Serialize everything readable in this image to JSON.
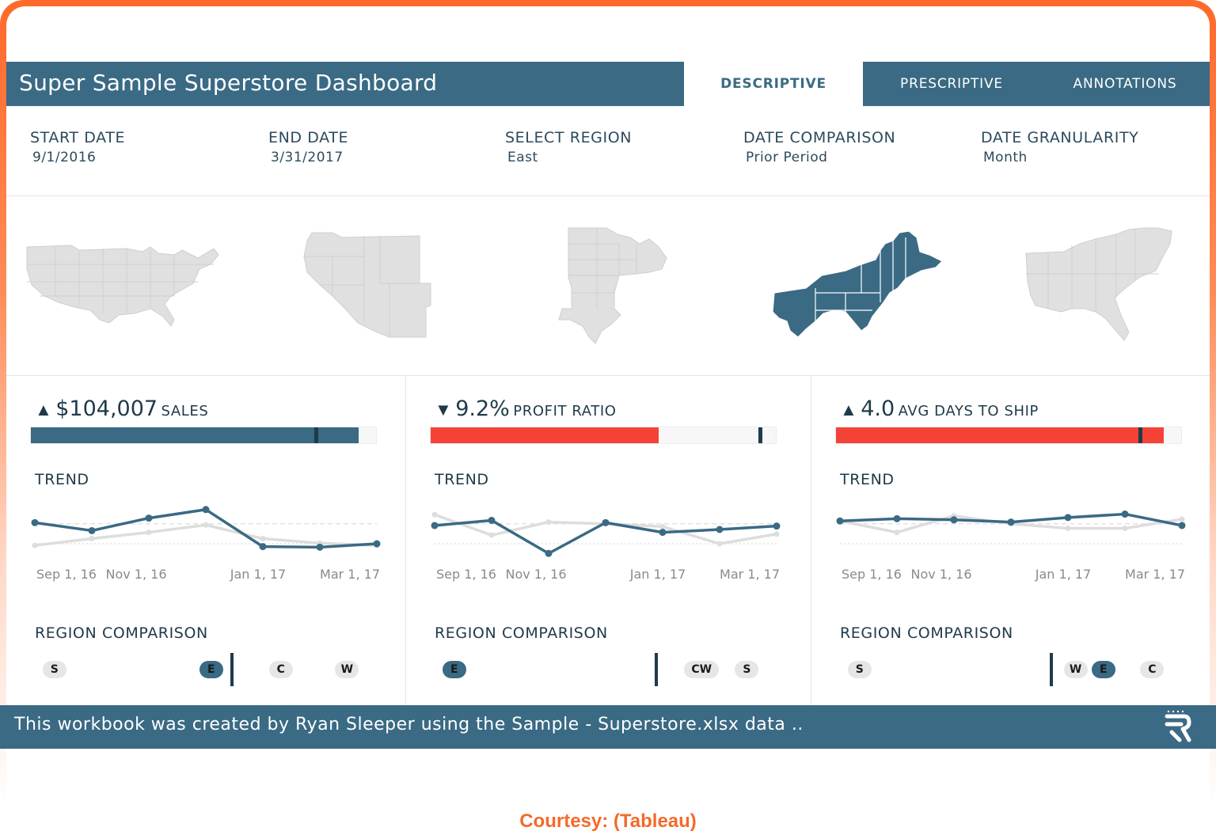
{
  "header": {
    "title": "Super Sample Superstore Dashboard"
  },
  "tabs": [
    {
      "label": "DESCRIPTIVE",
      "active": true
    },
    {
      "label": "PRESCRIPTIVE",
      "active": false
    },
    {
      "label": "ANNOTATIONS",
      "active": false
    }
  ],
  "filters": [
    {
      "label": "START DATE",
      "value": "9/1/2016"
    },
    {
      "label": "END DATE",
      "value": "3/31/2017"
    },
    {
      "label": "SELECT REGION",
      "value": "East"
    },
    {
      "label": "DATE COMPARISON",
      "value": "Prior Period"
    },
    {
      "label": "DATE GRANULARITY",
      "value": "Month"
    }
  ],
  "maps": {
    "regions": [
      "All",
      "West",
      "Central",
      "East",
      "South"
    ],
    "selected": "East",
    "colors": {
      "selected": "#3a6a84",
      "unselected": "#e0e0e0"
    }
  },
  "kpis": [
    {
      "direction": "up",
      "arrow": "▲",
      "value": "$104,007",
      "label": "SALES",
      "bar": {
        "fill": 0.95,
        "ref": 0.82,
        "color": "#3a6a84"
      },
      "trend_title": "TREND",
      "compare_title": "REGION COMPARISON",
      "chips": [
        {
          "label": "S",
          "pos": 0.07,
          "selected": false
        },
        {
          "label": "E",
          "pos": 0.52,
          "selected": true
        },
        {
          "label": "C",
          "pos": 0.72,
          "selected": false
        },
        {
          "label": "W",
          "pos": 0.91,
          "selected": false
        }
      ],
      "ref_pos": 0.575
    },
    {
      "direction": "down",
      "arrow": "▼",
      "value": "9.2%",
      "label": "PROFIT RATIO",
      "bar": {
        "fill": 0.66,
        "ref": 0.95,
        "color": "#f44336"
      },
      "trend_title": "TREND",
      "compare_title": "REGION COMPARISON",
      "chips": [
        {
          "label": "E",
          "pos": 0.07,
          "selected": true
        },
        {
          "label": "CW",
          "pos": 0.78,
          "selected": false,
          "wide": true
        },
        {
          "label": "S",
          "pos": 0.91,
          "selected": false
        }
      ],
      "ref_pos": 0.645
    },
    {
      "direction": "up",
      "arrow": "▲",
      "value": "4.0",
      "label": "AVG DAYS TO SHIP",
      "bar": {
        "fill": 0.95,
        "ref": 0.875,
        "color": "#f44336"
      },
      "trend_title": "TREND",
      "compare_title": "REGION COMPARISON",
      "chips": [
        {
          "label": "S",
          "pos": 0.07,
          "selected": false
        },
        {
          "label": "W",
          "pos": 0.69,
          "selected": false
        },
        {
          "label": "E",
          "pos": 0.77,
          "selected": true
        },
        {
          "label": "C",
          "pos": 0.91,
          "selected": false
        }
      ],
      "ref_pos": 0.615
    }
  ],
  "chart_data": [
    {
      "type": "line",
      "title": "TREND",
      "x": [
        "Sep 1, 16",
        "Oct 1, 16",
        "Nov 1, 16",
        "Dec 1, 16",
        "Jan 1, 17",
        "Feb 1, 17",
        "Mar 1, 17"
      ],
      "tick_labels": [
        "Sep 1, 16",
        "Nov 1, 16",
        "Jan 1, 17",
        "Mar 1, 17"
      ],
      "series": [
        {
          "values": [
            0.62,
            0.48,
            0.7,
            0.85,
            0.2,
            0.19,
            0.25
          ],
          "color": "#3a6a84"
        },
        {
          "values": [
            0.22,
            0.34,
            0.45,
            0.58,
            0.34,
            0.26,
            0.22
          ],
          "color": "#dddddd"
        }
      ]
    },
    {
      "type": "line",
      "title": "TREND",
      "x": [
        "Sep 1, 16",
        "Oct 1, 16",
        "Nov 1, 16",
        "Dec 1, 16",
        "Jan 1, 17",
        "Feb 1, 17",
        "Mar 1, 17"
      ],
      "tick_labels": [
        "Sep 1, 16",
        "Nov 1, 16",
        "Jan 1, 17",
        "Mar 1, 17"
      ],
      "series": [
        {
          "values": [
            0.57,
            0.66,
            0.08,
            0.62,
            0.45,
            0.5,
            0.56
          ],
          "color": "#3a6a84"
        },
        {
          "values": [
            0.76,
            0.4,
            0.63,
            0.6,
            0.55,
            0.25,
            0.42
          ],
          "color": "#dddddd"
        }
      ]
    },
    {
      "type": "line",
      "title": "TREND",
      "x": [
        "Sep 1, 16",
        "Oct 1, 16",
        "Nov 1, 16",
        "Dec 1, 16",
        "Jan 1, 17",
        "Feb 1, 17",
        "Mar 1, 17"
      ],
      "tick_labels": [
        "Sep 1, 16",
        "Nov 1, 16",
        "Jan 1, 17",
        "Mar 1, 17"
      ],
      "series": [
        {
          "values": [
            0.65,
            0.69,
            0.67,
            0.63,
            0.71,
            0.77,
            0.57
          ],
          "color": "#3a6a84"
        },
        {
          "values": [
            0.65,
            0.45,
            0.74,
            0.6,
            0.52,
            0.52,
            0.68
          ],
          "color": "#dddddd"
        }
      ]
    }
  ],
  "footer": {
    "text": "This workbook was created by Ryan Sleeper using the Sample - Superstore.xlsx data .."
  },
  "credit": "Courtesy: (Tableau)",
  "colors": {
    "brand": "#3a6a84",
    "alert": "#f44336",
    "frame": "#ff6a2b"
  }
}
